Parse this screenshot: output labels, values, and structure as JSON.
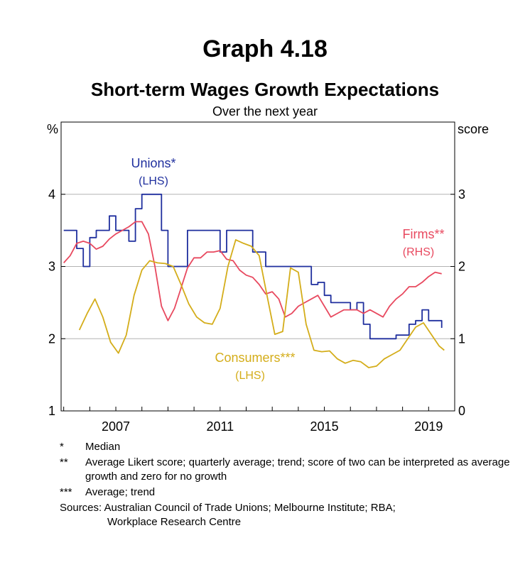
{
  "header": {
    "title": "Graph 4.18",
    "subtitle": "Short-term Wages Growth Expectations",
    "subsubtitle": "Over the next year"
  },
  "chart_data": {
    "type": "line",
    "left_axis": {
      "unit": "%",
      "ticks": [
        "1",
        "2",
        "3",
        "4"
      ],
      "ylim": [
        1,
        5
      ]
    },
    "right_axis": {
      "unit": "score",
      "ticks": [
        "0",
        "1",
        "2",
        "3"
      ],
      "ylim": [
        0,
        4
      ]
    },
    "x_ticks": [
      "2007",
      "2011",
      "2015",
      "2019"
    ],
    "x_tick_values": [
      2007,
      2011,
      2015,
      2019
    ],
    "xlim": [
      2004.9,
      2020.0
    ],
    "grid": true,
    "series": [
      {
        "name": "Unions*",
        "axis_note": "(LHS)",
        "axis": "left",
        "color": "#1f2f9e",
        "step": true,
        "points": [
          [
            2005.0,
            3.5
          ],
          [
            2005.25,
            3.5
          ],
          [
            2005.5,
            3.25
          ],
          [
            2005.75,
            3.0
          ],
          [
            2006.0,
            3.4
          ],
          [
            2006.25,
            3.5
          ],
          [
            2006.5,
            3.5
          ],
          [
            2006.75,
            3.7
          ],
          [
            2007.0,
            3.5
          ],
          [
            2007.25,
            3.5
          ],
          [
            2007.5,
            3.35
          ],
          [
            2007.75,
            3.8
          ],
          [
            2008.0,
            4.0
          ],
          [
            2008.25,
            4.0
          ],
          [
            2008.5,
            4.0
          ],
          [
            2008.75,
            3.5
          ],
          [
            2009.0,
            3.0
          ],
          [
            2009.25,
            3.0
          ],
          [
            2009.5,
            3.0
          ],
          [
            2009.75,
            3.5
          ],
          [
            2010.0,
            3.5
          ],
          [
            2010.25,
            3.5
          ],
          [
            2010.5,
            3.5
          ],
          [
            2010.75,
            3.5
          ],
          [
            2011.0,
            3.2
          ],
          [
            2011.25,
            3.5
          ],
          [
            2011.5,
            3.5
          ],
          [
            2011.75,
            3.5
          ],
          [
            2012.0,
            3.5
          ],
          [
            2012.25,
            3.2
          ],
          [
            2012.5,
            3.2
          ],
          [
            2012.75,
            3.0
          ],
          [
            2013.0,
            3.0
          ],
          [
            2013.25,
            3.0
          ],
          [
            2013.5,
            3.0
          ],
          [
            2013.75,
            3.0
          ],
          [
            2014.0,
            3.0
          ],
          [
            2014.25,
            3.0
          ],
          [
            2014.5,
            2.75
          ],
          [
            2014.75,
            2.78
          ],
          [
            2015.0,
            2.6
          ],
          [
            2015.25,
            2.5
          ],
          [
            2015.5,
            2.5
          ],
          [
            2015.75,
            2.5
          ],
          [
            2016.0,
            2.4
          ],
          [
            2016.25,
            2.5
          ],
          [
            2016.5,
            2.2
          ],
          [
            2016.75,
            2.0
          ],
          [
            2017.0,
            2.0
          ],
          [
            2017.25,
            2.0
          ],
          [
            2017.5,
            2.0
          ],
          [
            2017.75,
            2.05
          ],
          [
            2018.0,
            2.05
          ],
          [
            2018.25,
            2.2
          ],
          [
            2018.5,
            2.25
          ],
          [
            2018.75,
            2.4
          ],
          [
            2019.0,
            2.25
          ],
          [
            2019.25,
            2.25
          ],
          [
            2019.5,
            2.15
          ]
        ]
      },
      {
        "name": "Firms**",
        "axis_note": "(RHS)",
        "axis": "right",
        "color": "#e8495f",
        "step": false,
        "points": [
          [
            2005.0,
            2.05
          ],
          [
            2005.25,
            2.15
          ],
          [
            2005.5,
            2.32
          ],
          [
            2005.75,
            2.35
          ],
          [
            2006.0,
            2.32
          ],
          [
            2006.25,
            2.24
          ],
          [
            2006.5,
            2.28
          ],
          [
            2006.75,
            2.38
          ],
          [
            2007.0,
            2.45
          ],
          [
            2007.25,
            2.5
          ],
          [
            2007.5,
            2.55
          ],
          [
            2007.75,
            2.62
          ],
          [
            2008.0,
            2.62
          ],
          [
            2008.25,
            2.45
          ],
          [
            2008.5,
            2.0
          ],
          [
            2008.75,
            1.45
          ],
          [
            2009.0,
            1.25
          ],
          [
            2009.25,
            1.42
          ],
          [
            2009.5,
            1.7
          ],
          [
            2009.75,
            1.98
          ],
          [
            2010.0,
            2.12
          ],
          [
            2010.25,
            2.12
          ],
          [
            2010.5,
            2.2
          ],
          [
            2010.75,
            2.2
          ],
          [
            2011.0,
            2.22
          ],
          [
            2011.25,
            2.1
          ],
          [
            2011.5,
            2.08
          ],
          [
            2011.75,
            1.95
          ],
          [
            2012.0,
            1.88
          ],
          [
            2012.25,
            1.85
          ],
          [
            2012.5,
            1.75
          ],
          [
            2012.75,
            1.62
          ],
          [
            2013.0,
            1.65
          ],
          [
            2013.25,
            1.55
          ],
          [
            2013.5,
            1.3
          ],
          [
            2013.75,
            1.35
          ],
          [
            2014.0,
            1.45
          ],
          [
            2014.25,
            1.5
          ],
          [
            2014.5,
            1.55
          ],
          [
            2014.75,
            1.6
          ],
          [
            2015.0,
            1.45
          ],
          [
            2015.25,
            1.3
          ],
          [
            2015.5,
            1.35
          ],
          [
            2015.75,
            1.4
          ],
          [
            2016.0,
            1.4
          ],
          [
            2016.25,
            1.4
          ],
          [
            2016.5,
            1.35
          ],
          [
            2016.75,
            1.4
          ],
          [
            2017.0,
            1.35
          ],
          [
            2017.25,
            1.3
          ],
          [
            2017.5,
            1.45
          ],
          [
            2017.75,
            1.55
          ],
          [
            2018.0,
            1.62
          ],
          [
            2018.25,
            1.72
          ],
          [
            2018.5,
            1.72
          ],
          [
            2018.75,
            1.78
          ],
          [
            2019.0,
            1.86
          ],
          [
            2019.25,
            1.92
          ],
          [
            2019.5,
            1.9
          ]
        ]
      },
      {
        "name": "Consumers***",
        "axis_note": "(LHS)",
        "axis": "left",
        "color": "#d4ad1a",
        "step": false,
        "points": [
          [
            2005.6,
            2.12
          ],
          [
            2005.9,
            2.35
          ],
          [
            2006.2,
            2.55
          ],
          [
            2006.5,
            2.3
          ],
          [
            2006.8,
            1.95
          ],
          [
            2007.1,
            1.8
          ],
          [
            2007.4,
            2.05
          ],
          [
            2007.7,
            2.6
          ],
          [
            2008.0,
            2.95
          ],
          [
            2008.3,
            3.08
          ],
          [
            2008.6,
            3.05
          ],
          [
            2008.9,
            3.04
          ],
          [
            2009.2,
            3.0
          ],
          [
            2009.5,
            2.75
          ],
          [
            2009.8,
            2.48
          ],
          [
            2010.1,
            2.3
          ],
          [
            2010.4,
            2.22
          ],
          [
            2010.7,
            2.2
          ],
          [
            2011.0,
            2.42
          ],
          [
            2011.3,
            3.0
          ],
          [
            2011.6,
            3.37
          ],
          [
            2011.9,
            3.32
          ],
          [
            2012.2,
            3.28
          ],
          [
            2012.5,
            3.15
          ],
          [
            2012.8,
            2.6
          ],
          [
            2013.1,
            2.06
          ],
          [
            2013.4,
            2.1
          ],
          [
            2013.7,
            2.98
          ],
          [
            2014.0,
            2.92
          ],
          [
            2014.3,
            2.2
          ],
          [
            2014.6,
            1.84
          ],
          [
            2014.9,
            1.82
          ],
          [
            2015.2,
            1.83
          ],
          [
            2015.5,
            1.72
          ],
          [
            2015.8,
            1.66
          ],
          [
            2016.1,
            1.7
          ],
          [
            2016.4,
            1.68
          ],
          [
            2016.7,
            1.6
          ],
          [
            2017.0,
            1.62
          ],
          [
            2017.3,
            1.72
          ],
          [
            2017.6,
            1.78
          ],
          [
            2017.9,
            1.84
          ],
          [
            2018.2,
            2.0
          ],
          [
            2018.5,
            2.16
          ],
          [
            2018.8,
            2.22
          ],
          [
            2019.1,
            2.06
          ],
          [
            2019.4,
            1.9
          ],
          [
            2019.6,
            1.84
          ]
        ]
      }
    ]
  },
  "notes": [
    {
      "mark": "*",
      "text": "Median"
    },
    {
      "mark": "**",
      "text": "Average Likert score; quarterly average; trend; score of two can be interpreted as average growth and zero for no growth"
    },
    {
      "mark": "***",
      "text": "Average; trend"
    }
  ],
  "sources": {
    "label": "Sources:",
    "line1": "Australian Council of Trade Unions; Melbourne Institute; RBA;",
    "line2": "Workplace Research Centre"
  }
}
